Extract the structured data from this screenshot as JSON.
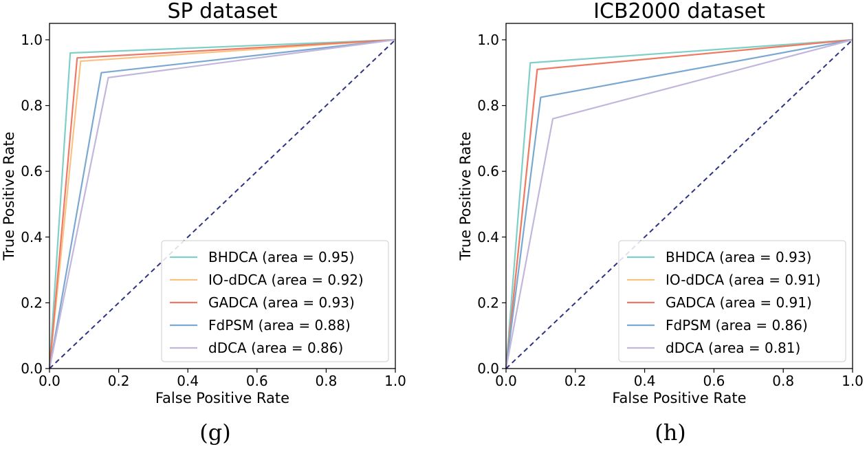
{
  "chart_data": [
    {
      "type": "line",
      "title": "SP dataset",
      "caption": "(g)",
      "xlabel": "False Positive Rate",
      "ylabel": "True Positive Rate",
      "xlim": [
        0.0,
        1.0
      ],
      "ylim": [
        0.0,
        1.05
      ],
      "xticks": [
        "0.0",
        "0.2",
        "0.4",
        "0.6",
        "0.8",
        "1.0"
      ],
      "yticks": [
        "0.0",
        "0.2",
        "0.4",
        "0.6",
        "0.8",
        "1.0"
      ],
      "legend_position": "lower-right",
      "series": [
        {
          "name": "BHDCA (area = 0.95)",
          "color": "#7ecfc7",
          "x": [
            0,
            0.06,
            1
          ],
          "y": [
            0,
            0.96,
            1
          ]
        },
        {
          "name": "IO-dDCA (area = 0.92)",
          "color": "#f9c283",
          "x": [
            0,
            0.09,
            1
          ],
          "y": [
            0,
            0.935,
            1
          ]
        },
        {
          "name": "GADCA (area = 0.93)",
          "color": "#ee7a66",
          "x": [
            0,
            0.08,
            1
          ],
          "y": [
            0,
            0.945,
            1
          ]
        },
        {
          "name": "FdPSM (area = 0.88)",
          "color": "#7aa8d0",
          "x": [
            0,
            0.15,
            1
          ],
          "y": [
            0,
            0.9,
            1
          ]
        },
        {
          "name": "dDCA (area = 0.86)",
          "color": "#c2b6db",
          "x": [
            0,
            0.17,
            1
          ],
          "y": [
            0,
            0.885,
            1
          ]
        }
      ],
      "diagonal": {
        "color": "#2e3282",
        "style": "dashed"
      }
    },
    {
      "type": "line",
      "title": "ICB2000 dataset",
      "caption": "(h)",
      "xlabel": "False Positive Rate",
      "ylabel": "True Positive Rate",
      "xlim": [
        0.0,
        1.0
      ],
      "ylim": [
        0.0,
        1.05
      ],
      "xticks": [
        "0.0",
        "0.2",
        "0.4",
        "0.6",
        "0.8",
        "1.0"
      ],
      "yticks": [
        "0.0",
        "0.2",
        "0.4",
        "0.6",
        "0.8",
        "1.0"
      ],
      "legend_position": "lower-right",
      "series": [
        {
          "name": "BHDCA (area = 0.93)",
          "color": "#7ecfc7",
          "x": [
            0,
            0.07,
            1
          ],
          "y": [
            0,
            0.93,
            1
          ]
        },
        {
          "name": "IO-dDCA (area = 0.91)",
          "color": "#f9c283",
          "x": [
            0,
            0.09,
            1
          ],
          "y": [
            0,
            0.91,
            1
          ]
        },
        {
          "name": "GADCA (area = 0.91)",
          "color": "#ee7a66",
          "x": [
            0,
            0.09,
            1
          ],
          "y": [
            0,
            0.91,
            1
          ]
        },
        {
          "name": "FdPSM (area = 0.86)",
          "color": "#7aa8d0",
          "x": [
            0,
            0.1,
            1
          ],
          "y": [
            0,
            0.825,
            1
          ]
        },
        {
          "name": "dDCA (area = 0.81)",
          "color": "#c2b6db",
          "x": [
            0,
            0.135,
            1
          ],
          "y": [
            0,
            0.76,
            1
          ]
        }
      ],
      "diagonal": {
        "color": "#2e3282",
        "style": "dashed"
      }
    }
  ]
}
